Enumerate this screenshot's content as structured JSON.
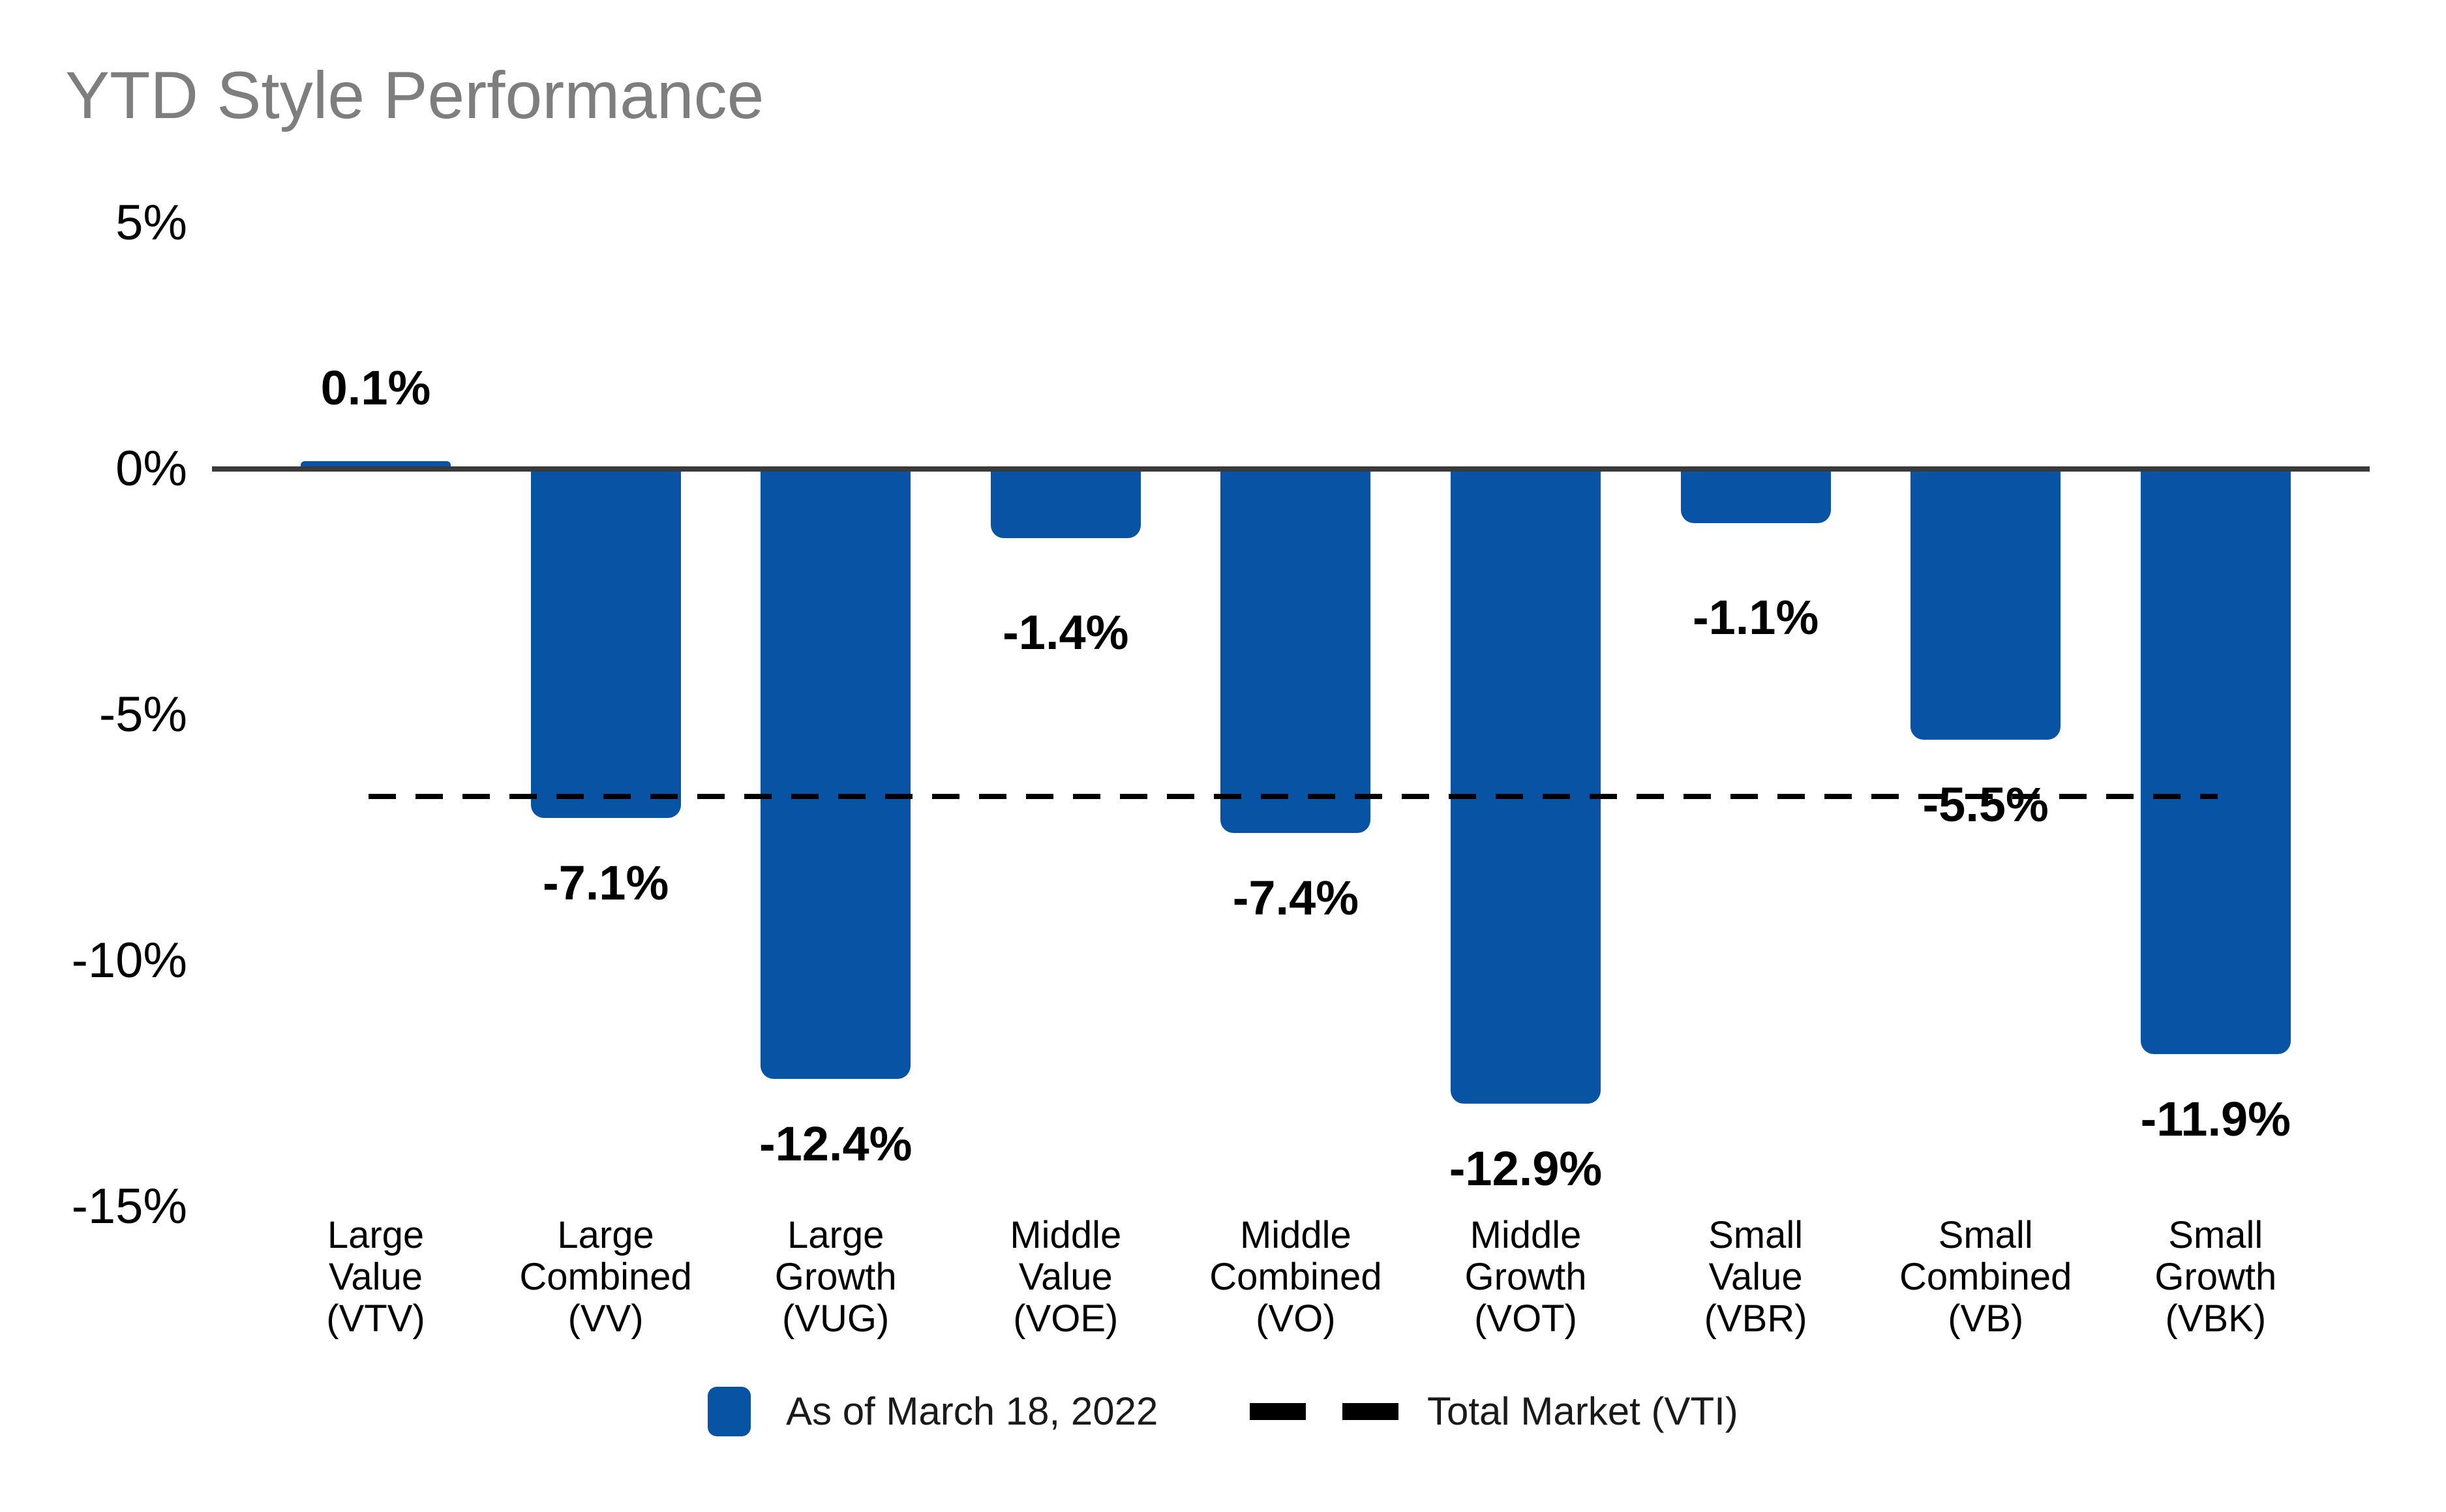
{
  "title": "YTD Style Performance",
  "colors": {
    "bar_blue": "#0853A4",
    "axis_gray": "#3A3A3A",
    "title_gray": "#7E7E7E",
    "text_black": "#000000"
  },
  "legend": {
    "series_label": "As of March 18, 2022",
    "line_label": "Total Market (VTI)"
  },
  "chart_data": {
    "type": "bar",
    "title": "YTD Style Performance",
    "categories": [
      "Large Value (VTV)",
      "Large Combined (VV)",
      "Large Growth (VUG)",
      "Middle Value (VOE)",
      "Middle Combined (VO)",
      "Middle Growth (VOT)",
      "Small Value (VBR)",
      "Small Combined (VB)",
      "Small Growth (VBK)"
    ],
    "category_lines": [
      [
        "Large",
        "Value",
        "(VTV)"
      ],
      [
        "Large",
        "Combined",
        "(VV)"
      ],
      [
        "Large",
        "Growth",
        "(VUG)"
      ],
      [
        "Middle",
        "Value",
        "(VOE)"
      ],
      [
        "Middle",
        "Combined",
        "(VO)"
      ],
      [
        "Middle",
        "Growth",
        "(VOT)"
      ],
      [
        "Small",
        "Value",
        "(VBR)"
      ],
      [
        "Small",
        "Combined",
        "(VB)"
      ],
      [
        "Small",
        "Growth",
        "(VBK)"
      ]
    ],
    "series": [
      {
        "name": "As of March 18, 2022",
        "values": [
          0.1,
          -7.1,
          -12.4,
          -1.4,
          -7.4,
          -12.9,
          -1.1,
          -5.5,
          -11.9
        ],
        "value_labels": [
          "0.1%",
          "-7.1%",
          "-12.4%",
          "-1.4%",
          "-7.4%",
          "-12.9%",
          "-1.1%",
          "-5.5%",
          "-11.9%"
        ]
      }
    ],
    "reference_line": {
      "label": "Total Market (VTI)",
      "style": "dashed",
      "value_estimate": -6.7
    },
    "xlabel": "",
    "ylabel": "",
    "ylim": [
      -15,
      5
    ],
    "ytick_labels": [
      "5%",
      "0%",
      "-5%",
      "-10%",
      "-15%"
    ],
    "ytick_values": [
      5,
      0,
      -5,
      -10,
      -15
    ],
    "grid": false,
    "legend_position": "bottom"
  }
}
